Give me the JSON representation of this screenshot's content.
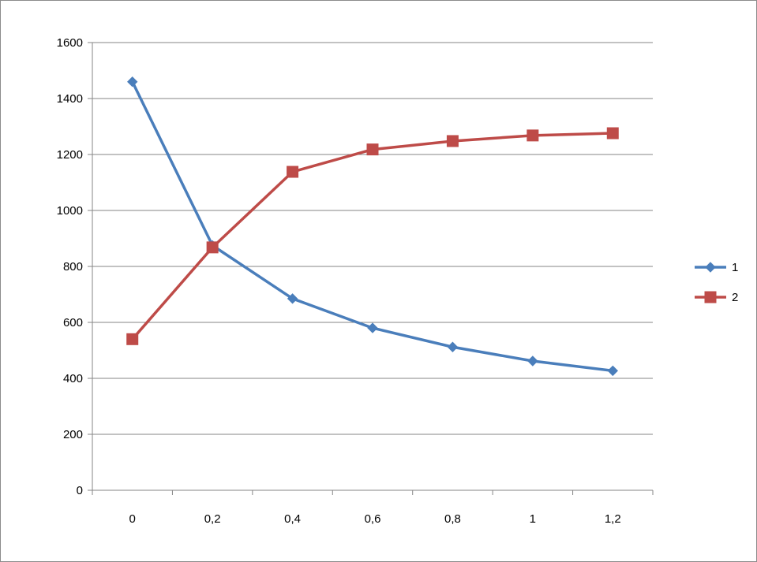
{
  "chart_data": {
    "type": "line",
    "title": "",
    "xlabel": "",
    "ylabel": "",
    "categories": [
      "0",
      "0,2",
      "0,4",
      "0,6",
      "0,8",
      "1",
      "1,2"
    ],
    "ylim": [
      0,
      1600
    ],
    "yticks": [
      0,
      200,
      400,
      600,
      800,
      1000,
      1200,
      1400,
      1600
    ],
    "ytick_labels": [
      "0",
      "200",
      "400",
      "600",
      "800",
      "1000",
      "1200",
      "1400",
      "1600"
    ],
    "grid": "horizontal",
    "legend_position": "right",
    "series": [
      {
        "name": "1",
        "color": "#4a7ebb",
        "marker": "diamond",
        "values": [
          1460,
          875,
          685,
          580,
          512,
          462,
          427
        ]
      },
      {
        "name": "2",
        "color": "#be4b48",
        "marker": "square",
        "values": [
          540,
          868,
          1138,
          1218,
          1248,
          1268,
          1276
        ]
      }
    ]
  }
}
